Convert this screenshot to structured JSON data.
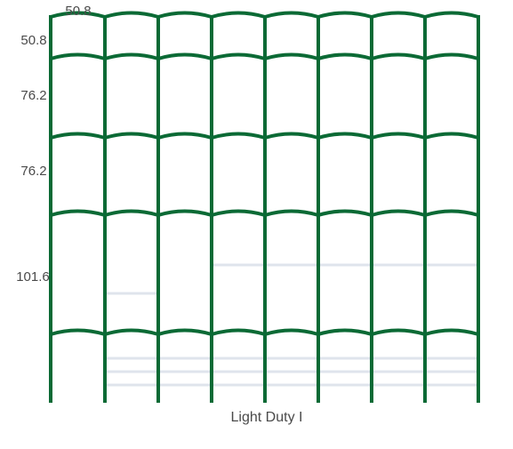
{
  "top_dimension": "50.8",
  "side_dimensions": [
    "50.8",
    "76.2",
    "76.2",
    "101.6"
  ],
  "caption": "Light Duty I"
}
